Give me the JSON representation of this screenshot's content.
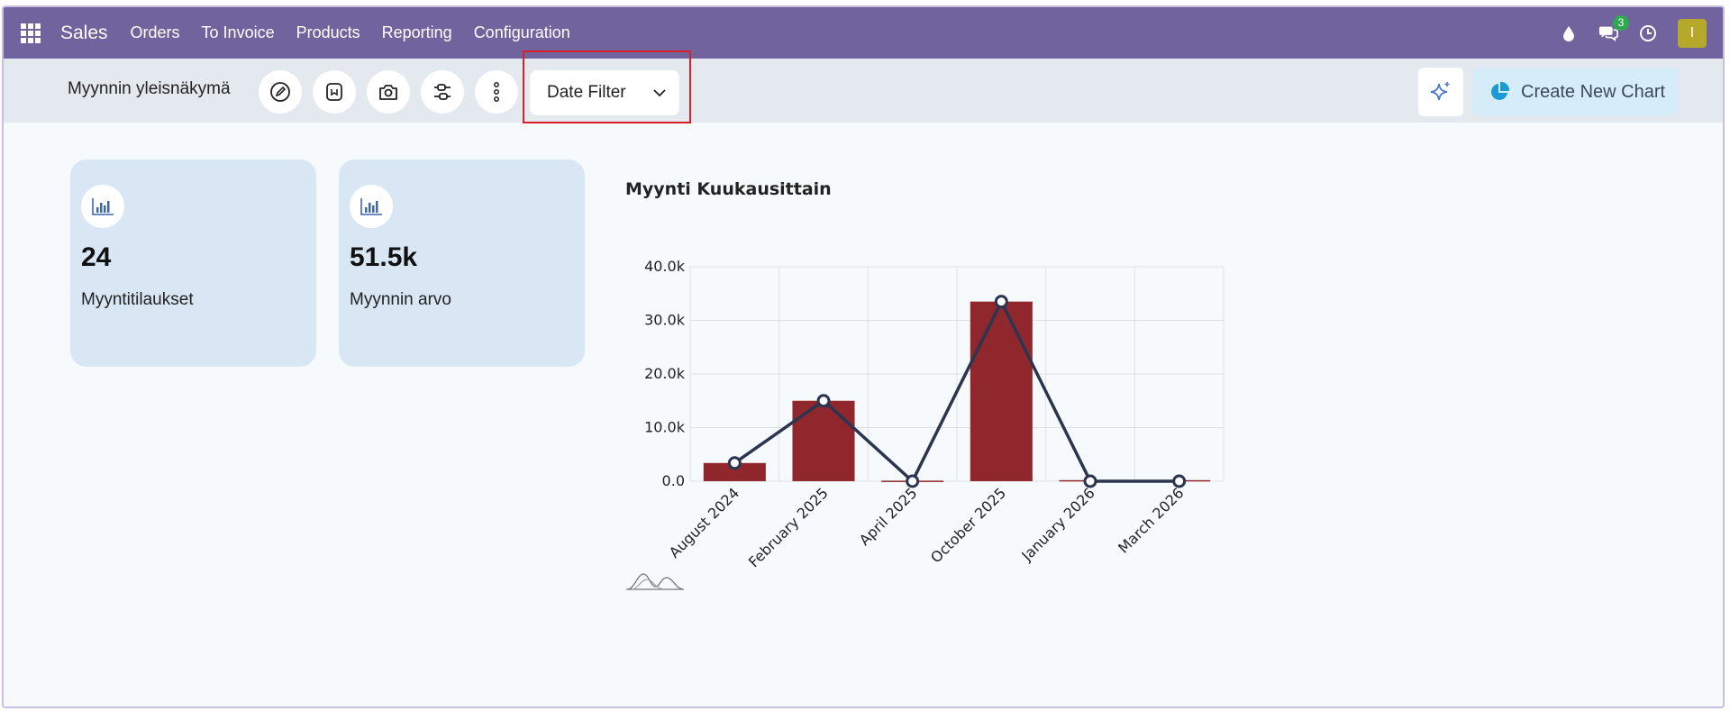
{
  "navbar": {
    "brand": "Sales",
    "menu": [
      "Orders",
      "To Invoice",
      "Products",
      "Reporting",
      "Configuration"
    ],
    "messages_count": "3",
    "avatar_initial": "I"
  },
  "controls": {
    "dashboard_title": "Myynnin yleisnäkymä",
    "date_filter_label": "Date Filter",
    "create_chart_label": "Create New Chart"
  },
  "cards": [
    {
      "value": "24",
      "label": "Myyntitilaukset"
    },
    {
      "value": "51.5k",
      "label": "Myynnin arvo"
    }
  ],
  "chart_data": {
    "type": "bar",
    "title": "Myynti Kuukausittain",
    "categories": [
      "August 2024",
      "February 2025",
      "April 2025",
      "October 2025",
      "January 2026",
      "March 2026"
    ],
    "series": [
      {
        "type": "bar",
        "values": [
          3400,
          15000,
          100,
          33500,
          200,
          200
        ],
        "color": "#8f272d"
      },
      {
        "type": "line",
        "values": [
          3400,
          15000,
          0,
          33500,
          0,
          0
        ],
        "color": "#2b3550"
      }
    ],
    "yticks": [
      "0.0",
      "10.0k",
      "20.0k",
      "30.0k",
      "40.0k"
    ],
    "ylim": [
      0,
      40000
    ],
    "grid": true
  }
}
